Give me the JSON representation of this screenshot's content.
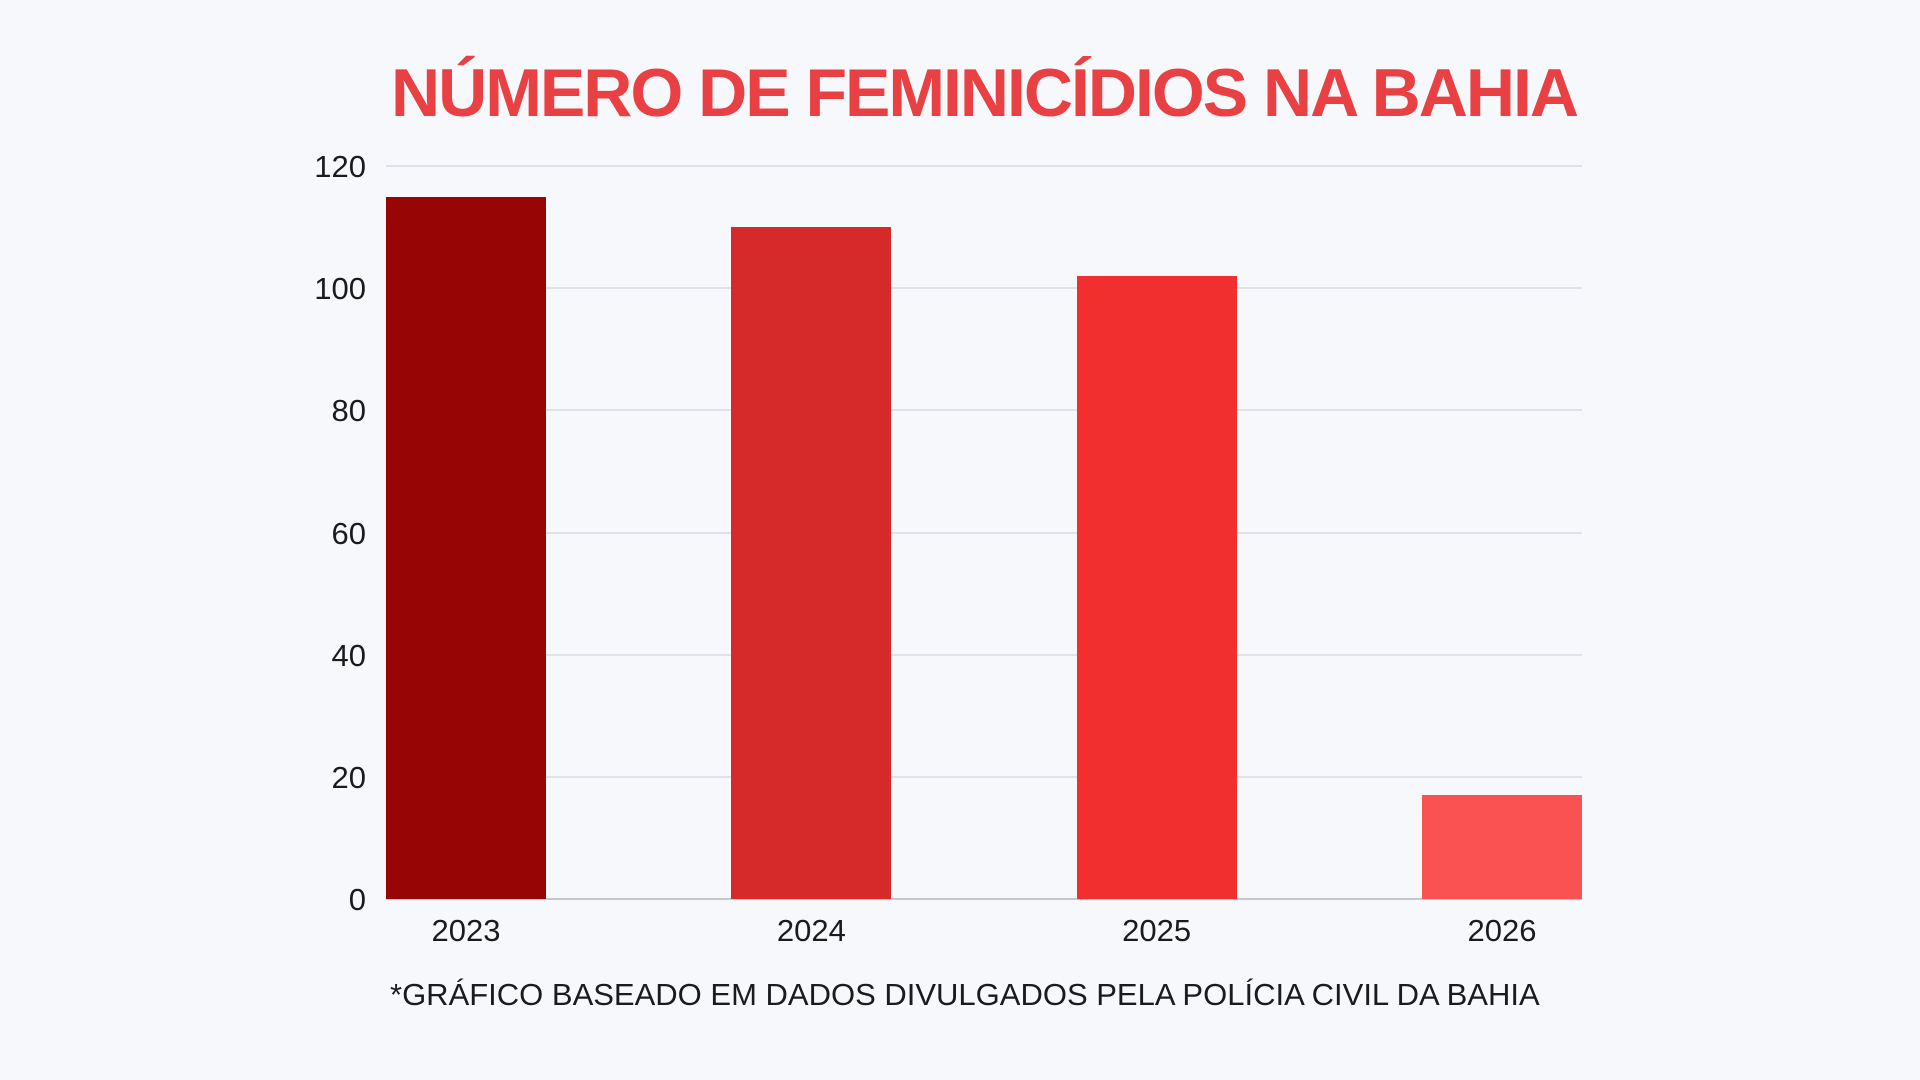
{
  "title": "NÚMERO DE FEMINICÍDIOS NA BAHIA",
  "footnote": "*GRÁFICO BASEADO EM DADOS DIVULGADOS PELA POLÍCIA CIVIL DA BAHIA",
  "colors": {
    "background": "#F7F8FC",
    "title": "#E94043",
    "gridline": "#E1E2E9",
    "axis_line": "#C6C8CE",
    "label_text": "#1B1B1D"
  },
  "chart_data": {
    "type": "bar",
    "categories": [
      "2023",
      "2024",
      "2025",
      "2026"
    ],
    "values": [
      115,
      110,
      102,
      17
    ],
    "bar_colors": [
      "#970505",
      "#D62929",
      "#F22F2F",
      "#FA5252"
    ],
    "title": "NÚMERO DE FEMINICÍDIOS NA BAHIA",
    "xlabel": "",
    "ylabel": "",
    "ylim": [
      0,
      120
    ],
    "yticks": [
      0,
      20,
      40,
      60,
      80,
      100,
      120
    ],
    "grid": "horizontal",
    "legend": "none",
    "annotation": "*GRÁFICO BASEADO EM DADOS DIVULGADOS PELA POLÍCIA CIVIL DA BAHIA"
  }
}
